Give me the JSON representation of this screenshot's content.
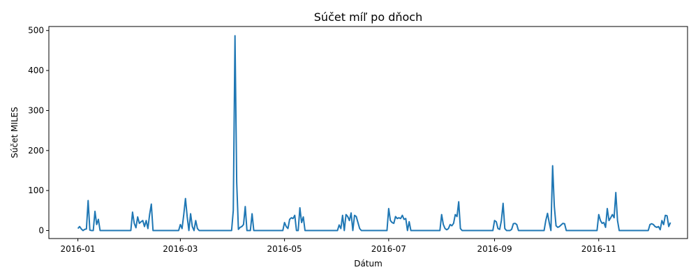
{
  "chart_data": {
    "type": "line",
    "title": "Súčet míľ po dňoch",
    "xlabel": "Dátum",
    "ylabel": "Súčet MILES",
    "xlim": [
      "2015-12-15",
      "2016-12-23"
    ],
    "ylim": [
      -20,
      510
    ],
    "x_ticks": [
      "2016-01",
      "2016-03",
      "2016-05",
      "2016-07",
      "2016-09",
      "2016-11"
    ],
    "x_tick_dates": [
      "2016-01-01",
      "2016-03-01",
      "2016-05-01",
      "2016-07-01",
      "2016-09-01",
      "2016-11-01"
    ],
    "y_ticks": [
      0,
      100,
      200,
      300,
      400,
      500
    ],
    "grid": false,
    "line_color": "#1f77b4",
    "series": [
      {
        "points": [
          [
            "2016-01-01",
            5
          ],
          [
            "2016-01-02",
            10
          ],
          [
            "2016-01-03",
            4
          ],
          [
            "2016-01-04",
            0
          ],
          [
            "2016-01-05",
            3
          ],
          [
            "2016-01-06",
            4
          ],
          [
            "2016-01-07",
            75
          ],
          [
            "2016-01-08",
            1
          ],
          [
            "2016-01-09",
            0
          ],
          [
            "2016-01-10",
            0
          ],
          [
            "2016-01-11",
            48
          ],
          [
            "2016-01-12",
            15
          ],
          [
            "2016-01-13",
            28
          ],
          [
            "2016-01-14",
            0
          ],
          [
            "2016-02-01",
            0
          ],
          [
            "2016-02-02",
            46
          ],
          [
            "2016-02-03",
            18
          ],
          [
            "2016-02-04",
            7
          ],
          [
            "2016-02-05",
            34
          ],
          [
            "2016-02-06",
            18
          ],
          [
            "2016-02-07",
            22
          ],
          [
            "2016-02-08",
            25
          ],
          [
            "2016-02-09",
            10
          ],
          [
            "2016-02-10",
            25
          ],
          [
            "2016-02-11",
            5
          ],
          [
            "2016-02-12",
            40
          ],
          [
            "2016-02-13",
            66
          ],
          [
            "2016-02-14",
            0
          ],
          [
            "2016-02-29",
            0
          ],
          [
            "2016-03-01",
            15
          ],
          [
            "2016-03-02",
            5
          ],
          [
            "2016-03-03",
            40
          ],
          [
            "2016-03-04",
            80
          ],
          [
            "2016-03-05",
            35
          ],
          [
            "2016-03-06",
            0
          ],
          [
            "2016-03-07",
            42
          ],
          [
            "2016-03-08",
            10
          ],
          [
            "2016-03-09",
            0
          ],
          [
            "2016-03-10",
            25
          ],
          [
            "2016-03-11",
            5
          ],
          [
            "2016-03-12",
            0
          ],
          [
            "2016-03-31",
            0
          ],
          [
            "2016-04-01",
            50
          ],
          [
            "2016-04-02",
            487
          ],
          [
            "2016-04-03",
            120
          ],
          [
            "2016-04-04",
            3
          ],
          [
            "2016-04-05",
            8
          ],
          [
            "2016-04-06",
            10
          ],
          [
            "2016-04-07",
            15
          ],
          [
            "2016-04-08",
            60
          ],
          [
            "2016-04-09",
            0
          ],
          [
            "2016-04-11",
            0
          ],
          [
            "2016-04-12",
            42
          ],
          [
            "2016-04-13",
            0
          ],
          [
            "2016-04-30",
            0
          ],
          [
            "2016-05-01",
            20
          ],
          [
            "2016-05-02",
            10
          ],
          [
            "2016-05-03",
            5
          ],
          [
            "2016-05-04",
            28
          ],
          [
            "2016-05-05",
            32
          ],
          [
            "2016-05-06",
            30
          ],
          [
            "2016-05-07",
            38
          ],
          [
            "2016-05-08",
            0
          ],
          [
            "2016-05-09",
            0
          ],
          [
            "2016-05-10",
            57
          ],
          [
            "2016-05-11",
            20
          ],
          [
            "2016-05-12",
            34
          ],
          [
            "2016-05-13",
            0
          ],
          [
            "2016-06-01",
            0
          ],
          [
            "2016-06-02",
            14
          ],
          [
            "2016-06-03",
            5
          ],
          [
            "2016-06-04",
            38
          ],
          [
            "2016-06-05",
            0
          ],
          [
            "2016-06-06",
            40
          ],
          [
            "2016-06-07",
            35
          ],
          [
            "2016-06-08",
            25
          ],
          [
            "2016-06-09",
            44
          ],
          [
            "2016-06-10",
            0
          ],
          [
            "2016-06-11",
            38
          ],
          [
            "2016-06-12",
            35
          ],
          [
            "2016-06-13",
            20
          ],
          [
            "2016-06-14",
            5
          ],
          [
            "2016-06-15",
            0
          ],
          [
            "2016-06-30",
            0
          ],
          [
            "2016-07-01",
            55
          ],
          [
            "2016-07-02",
            25
          ],
          [
            "2016-07-03",
            20
          ],
          [
            "2016-07-04",
            18
          ],
          [
            "2016-07-05",
            35
          ],
          [
            "2016-07-06",
            30
          ],
          [
            "2016-07-07",
            32
          ],
          [
            "2016-07-08",
            30
          ],
          [
            "2016-07-09",
            38
          ],
          [
            "2016-07-10",
            28
          ],
          [
            "2016-07-11",
            30
          ],
          [
            "2016-07-12",
            0
          ],
          [
            "2016-07-13",
            22
          ],
          [
            "2016-07-14",
            0
          ],
          [
            "2016-07-31",
            0
          ],
          [
            "2016-08-01",
            40
          ],
          [
            "2016-08-02",
            15
          ],
          [
            "2016-08-03",
            5
          ],
          [
            "2016-08-04",
            2
          ],
          [
            "2016-08-05",
            5
          ],
          [
            "2016-08-06",
            15
          ],
          [
            "2016-08-07",
            12
          ],
          [
            "2016-08-08",
            18
          ],
          [
            "2016-08-09",
            40
          ],
          [
            "2016-08-10",
            35
          ],
          [
            "2016-08-11",
            72
          ],
          [
            "2016-08-12",
            5
          ],
          [
            "2016-08-13",
            0
          ],
          [
            "2016-08-31",
            0
          ],
          [
            "2016-09-01",
            25
          ],
          [
            "2016-09-02",
            22
          ],
          [
            "2016-09-03",
            5
          ],
          [
            "2016-09-04",
            3
          ],
          [
            "2016-09-05",
            25
          ],
          [
            "2016-09-06",
            68
          ],
          [
            "2016-09-07",
            5
          ],
          [
            "2016-09-08",
            0
          ],
          [
            "2016-09-10",
            0
          ],
          [
            "2016-09-11",
            3
          ],
          [
            "2016-09-12",
            17
          ],
          [
            "2016-09-13",
            18
          ],
          [
            "2016-09-14",
            15
          ],
          [
            "2016-09-15",
            0
          ],
          [
            "2016-09-30",
            0
          ],
          [
            "2016-10-01",
            25
          ],
          [
            "2016-10-02",
            43
          ],
          [
            "2016-10-03",
            20
          ],
          [
            "2016-10-04",
            0
          ],
          [
            "2016-10-05",
            162
          ],
          [
            "2016-10-06",
            60
          ],
          [
            "2016-10-07",
            12
          ],
          [
            "2016-10-08",
            8
          ],
          [
            "2016-10-09",
            10
          ],
          [
            "2016-10-10",
            14
          ],
          [
            "2016-10-11",
            18
          ],
          [
            "2016-10-12",
            17
          ],
          [
            "2016-10-13",
            0
          ],
          [
            "2016-10-31",
            0
          ],
          [
            "2016-11-01",
            40
          ],
          [
            "2016-11-02",
            25
          ],
          [
            "2016-11-03",
            18
          ],
          [
            "2016-11-04",
            20
          ],
          [
            "2016-11-05",
            8
          ],
          [
            "2016-11-06",
            55
          ],
          [
            "2016-11-07",
            25
          ],
          [
            "2016-11-08",
            32
          ],
          [
            "2016-11-09",
            40
          ],
          [
            "2016-11-10",
            32
          ],
          [
            "2016-11-11",
            95
          ],
          [
            "2016-11-12",
            25
          ],
          [
            "2016-11-13",
            0
          ],
          [
            "2016-11-30",
            0
          ],
          [
            "2016-12-01",
            15
          ],
          [
            "2016-12-02",
            17
          ],
          [
            "2016-12-03",
            15
          ],
          [
            "2016-12-04",
            10
          ],
          [
            "2016-12-05",
            8
          ],
          [
            "2016-12-06",
            10
          ],
          [
            "2016-12-07",
            2
          ],
          [
            "2016-12-08",
            25
          ],
          [
            "2016-12-09",
            15
          ],
          [
            "2016-12-10",
            38
          ],
          [
            "2016-12-11",
            37
          ],
          [
            "2016-12-12",
            10
          ],
          [
            "2016-12-13",
            20
          ]
        ]
      }
    ]
  }
}
